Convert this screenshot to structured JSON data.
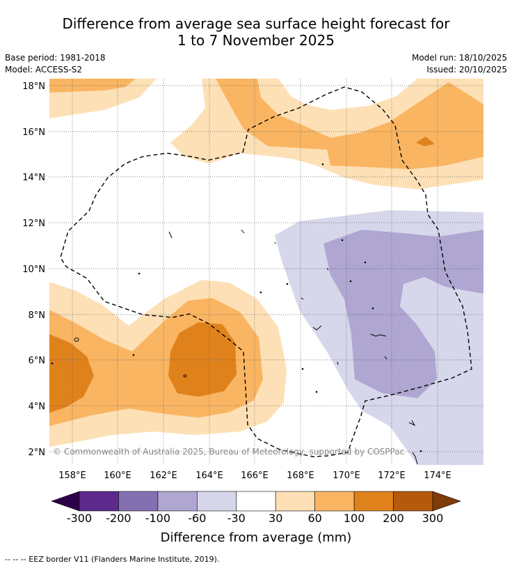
{
  "title": {
    "line1": "Difference from average sea surface height forecast for",
    "line2": "1 to 7 November 2025"
  },
  "meta": {
    "base_period": "Base period: 1981-2018",
    "model": "Model: ACCESS-S2",
    "model_run": "Model run: 18/10/2025",
    "issued": "Issued: 20/10/2025"
  },
  "copyright": "© Commonwealth of Australia 2025, Bureau of Meteorology, supported by COSPPac",
  "footnote": "--  --  -- EEZ border V11 (Flanders Marine Institute, 2019).",
  "map": {
    "lat_labels": [
      "18°N",
      "16°N",
      "14°N",
      "12°N",
      "10°N",
      "8°N",
      "6°N",
      "4°N",
      "2°N"
    ],
    "lon_labels": [
      "158°E",
      "160°E",
      "162°E",
      "164°E",
      "166°E",
      "168°E",
      "170°E",
      "172°E",
      "174°E"
    ]
  },
  "colorbar": {
    "title": "Difference from average (mm)",
    "tick_labels": [
      "-300",
      "-200",
      "-100",
      "-60",
      "-30",
      "30",
      "60",
      "100",
      "200",
      "300"
    ],
    "colors": [
      "#5c2a8c",
      "#8370b0",
      "#afa6d2",
      "#d7d7eb",
      "#ffffff",
      "#fde0b6",
      "#fab562",
      "#e0821c",
      "#b55a0c"
    ],
    "under_color": "#2d004b",
    "over_color": "#7f3b08"
  }
}
